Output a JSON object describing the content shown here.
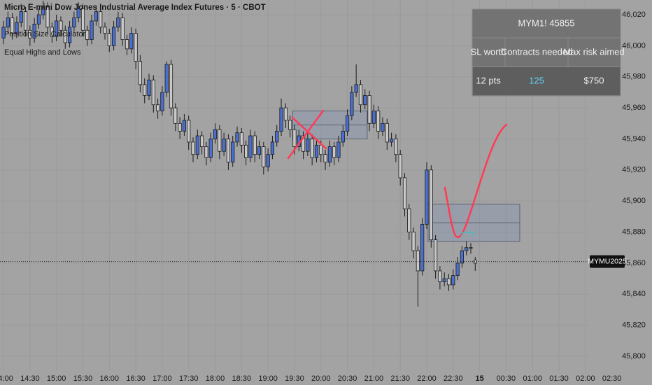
{
  "chart_data": {
    "type": "candlestick",
    "title": "Micro E-mini Dow Jones Industrial Average Index Futures · 5 · CBOT",
    "indicators": [
      "Position Size Calculator",
      "Equal Highs and Lows"
    ],
    "up_color": "#4a6fd1",
    "down_color": "#c9c9c9",
    "grid": true,
    "xlim": [
      -0.8,
      147.1
    ],
    "ylim": [
      45790.5,
      46029.5
    ],
    "xticks": [
      {
        "value": 0,
        "label": "14:00"
      },
      {
        "value": 6,
        "label": "14:30"
      },
      {
        "value": 12,
        "label": "15:00"
      },
      {
        "value": 18,
        "label": "15:30"
      },
      {
        "value": 24,
        "label": "16:00"
      },
      {
        "value": 30,
        "label": "16:30"
      },
      {
        "value": 36,
        "label": "17:00"
      },
      {
        "value": 42,
        "label": "17:30"
      },
      {
        "value": 48,
        "label": "18:00"
      },
      {
        "value": 54,
        "label": "18:30"
      },
      {
        "value": 60,
        "label": "19:00"
      },
      {
        "value": 66,
        "label": "19:30"
      },
      {
        "value": 72,
        "label": "20:00"
      },
      {
        "value": 78,
        "label": "20:30"
      },
      {
        "value": 84,
        "label": "21:00"
      },
      {
        "value": 90,
        "label": "21:30"
      },
      {
        "value": 96,
        "label": "22:00"
      },
      {
        "value": 102,
        "label": "22:30"
      },
      {
        "value": 108,
        "label": "15"
      },
      {
        "value": 114,
        "label": "00:30"
      },
      {
        "value": 120,
        "label": "01:00"
      },
      {
        "value": 126,
        "label": "01:30"
      },
      {
        "value": 132,
        "label": "02:00"
      },
      {
        "value": 138,
        "label": "02:30"
      }
    ],
    "yticks": [
      {
        "value": 45800,
        "label": "45,800"
      },
      {
        "value": 45820,
        "label": "45,820"
      },
      {
        "value": 45840,
        "label": "45,840"
      },
      {
        "value": 45860,
        "label": "45,860"
      },
      {
        "value": 45880,
        "label": "45,880"
      },
      {
        "value": 45900,
        "label": "45,900"
      },
      {
        "value": 45920,
        "label": "45,920"
      },
      {
        "value": 45940,
        "label": "45,940"
      },
      {
        "value": 45960,
        "label": "45,960"
      },
      {
        "value": 45980,
        "label": "45,980"
      },
      {
        "value": 46000,
        "label": "46,000"
      },
      {
        "value": 46020,
        "label": "46,020"
      }
    ],
    "candles": [
      [
        46005,
        46016,
        46001,
        46012
      ],
      [
        46012,
        46022,
        46008,
        46018
      ],
      [
        46018,
        46021,
        46004,
        46008
      ],
      [
        46008,
        46019,
        46005,
        46015
      ],
      [
        46015,
        46027,
        46012,
        46022
      ],
      [
        46022,
        46025,
        46006,
        46010
      ],
      [
        46010,
        46013,
        46000,
        46005
      ],
      [
        46005,
        46018,
        46002,
        46014
      ],
      [
        46014,
        46024,
        46011,
        46020
      ],
      [
        46020,
        46029,
        46017,
        46025
      ],
      [
        46025,
        46028,
        46008,
        46012
      ],
      [
        46012,
        46015,
        46002,
        46006
      ],
      [
        46006,
        46020,
        46003,
        46016
      ],
      [
        46016,
        46019,
        46006,
        46010
      ],
      [
        46010,
        46013,
        45998,
        46002
      ],
      [
        46002,
        46016,
        45999,
        46012
      ],
      [
        46012,
        46022,
        46009,
        46018
      ],
      [
        46018,
        46028,
        46015,
        46024
      ],
      [
        46024,
        46027,
        46006,
        46010
      ],
      [
        46010,
        46013,
        46000,
        46004
      ],
      [
        46004,
        46020,
        46001,
        46016
      ],
      [
        46016,
        46026,
        46013,
        46022
      ],
      [
        46022,
        46025,
        46008,
        46012
      ],
      [
        46012,
        46015,
        46004,
        46008
      ],
      [
        46008,
        46011,
        45996,
        46000
      ],
      [
        46000,
        46016,
        45997,
        46012
      ],
      [
        46012,
        46022,
        46009,
        46018
      ],
      [
        46018,
        46021,
        46000,
        46004
      ],
      [
        46004,
        46007,
        45994,
        45998
      ],
      [
        45998,
        46012,
        45995,
        46008
      ],
      [
        46008,
        46011,
        45985,
        45990
      ],
      [
        45990,
        45994,
        45970,
        45975
      ],
      [
        45975,
        45979,
        45963,
        45968
      ],
      [
        45968,
        45982,
        45965,
        45978
      ],
      [
        45978,
        45981,
        45957,
        45962
      ],
      [
        45962,
        45966,
        45953,
        45958
      ],
      [
        45958,
        45974,
        45955,
        45970
      ],
      [
        45970,
        45990,
        45967,
        45988
      ],
      [
        45988,
        45991,
        45955,
        45960
      ],
      [
        45960,
        45963,
        45945,
        45950
      ],
      [
        45950,
        45954,
        45940,
        45945
      ],
      [
        45945,
        45956,
        45942,
        45952
      ],
      [
        45952,
        45955,
        45933,
        45938
      ],
      [
        45938,
        45941,
        45925,
        45930
      ],
      [
        45930,
        45946,
        45927,
        45942
      ],
      [
        45942,
        45945,
        45930,
        45935
      ],
      [
        45935,
        45938,
        45923,
        45928
      ],
      [
        45928,
        45944,
        45925,
        45940
      ],
      [
        45940,
        45950,
        45937,
        45946
      ],
      [
        45946,
        45949,
        45927,
        45932
      ],
      [
        45932,
        45944,
        45929,
        45940
      ],
      [
        45940,
        45943,
        45920,
        45925
      ],
      [
        45925,
        45942,
        45922,
        45938
      ],
      [
        45938,
        45948,
        45935,
        45944
      ],
      [
        45944,
        45947,
        45931,
        45936
      ],
      [
        45936,
        45939,
        45923,
        45928
      ],
      [
        45928,
        45946,
        45925,
        45942
      ],
      [
        45942,
        45945,
        45925,
        45930
      ],
      [
        45930,
        45939,
        45927,
        45935
      ],
      [
        45935,
        45938,
        45917,
        45922
      ],
      [
        45922,
        45934,
        45919,
        45930
      ],
      [
        45930,
        45942,
        45927,
        45938
      ],
      [
        45938,
        45949,
        45935,
        45945
      ],
      [
        45945,
        45966,
        45942,
        45960
      ],
      [
        45960,
        45963,
        45947,
        45952
      ],
      [
        45952,
        45955,
        45941,
        45946
      ],
      [
        45946,
        45949,
        45930,
        45935
      ],
      [
        45935,
        45946,
        45932,
        45942
      ],
      [
        45942,
        45945,
        45927,
        45932
      ],
      [
        45932,
        45944,
        45929,
        45940
      ],
      [
        45940,
        45943,
        45923,
        45928
      ],
      [
        45928,
        45940,
        45925,
        45936
      ],
      [
        45936,
        45939,
        45925,
        45930
      ],
      [
        45930,
        45933,
        45920,
        45925
      ],
      [
        45925,
        45939,
        45922,
        45935
      ],
      [
        45935,
        45938,
        45923,
        45928
      ],
      [
        45928,
        45942,
        45925,
        45938
      ],
      [
        45938,
        45949,
        45935,
        45945
      ],
      [
        45945,
        45959,
        45942,
        45955
      ],
      [
        45955,
        45974,
        45952,
        45970
      ],
      [
        45970,
        45988,
        45967,
        45975
      ],
      [
        45975,
        45978,
        45957,
        45962
      ],
      [
        45962,
        45972,
        45959,
        45968
      ],
      [
        45968,
        45971,
        45945,
        45950
      ],
      [
        45950,
        45962,
        45947,
        45958
      ],
      [
        45958,
        45961,
        45940,
        45945
      ],
      [
        45945,
        45954,
        45942,
        45950
      ],
      [
        45950,
        45953,
        45933,
        45938
      ],
      [
        45938,
        45944,
        45935,
        45940
      ],
      [
        45940,
        45943,
        45925,
        45930
      ],
      [
        45930,
        45933,
        45910,
        45915
      ],
      [
        45915,
        45918,
        45890,
        45895
      ],
      [
        45895,
        45898,
        45875,
        45880
      ],
      [
        45880,
        45883,
        45863,
        45868
      ],
      [
        45868,
        45871,
        45832,
        45855
      ],
      [
        45855,
        45889,
        45852,
        45885
      ],
      [
        45885,
        45925,
        45882,
        45920
      ],
      [
        45920,
        45923,
        45870,
        45875
      ],
      [
        45875,
        45878,
        45850,
        45855
      ],
      [
        45855,
        45858,
        45843,
        45848
      ],
      [
        45848,
        45854,
        45845,
        45850
      ],
      [
        45850,
        45853,
        45842,
        45846
      ],
      [
        45846,
        45856,
        45843,
        45852
      ],
      [
        45852,
        45864,
        45849,
        45860
      ],
      [
        45860,
        45871,
        45857,
        45868
      ],
      [
        45868,
        45874,
        45865,
        45870
      ],
      [
        45870,
        45873,
        45866,
        45870
      ],
      [
        45862,
        45864,
        45855,
        45860
      ]
    ],
    "zones": [
      {
        "start": 65.6,
        "end": 82.5,
        "top": 45958,
        "mid": 45949,
        "bottom": 45940
      },
      {
        "start": 96.3,
        "end": 117.1,
        "top": 45898,
        "mid": 45886,
        "bottom": 45874
      }
    ],
    "last_price": 45861,
    "last_price_label": "MYMU2025"
  },
  "table": {
    "title": "MYM1! 45855",
    "headers": [
      "SL worth",
      "Contracts needed",
      "Max risk aimed"
    ],
    "rows": [
      [
        "12 pts",
        "125",
        "$750"
      ]
    ]
  }
}
